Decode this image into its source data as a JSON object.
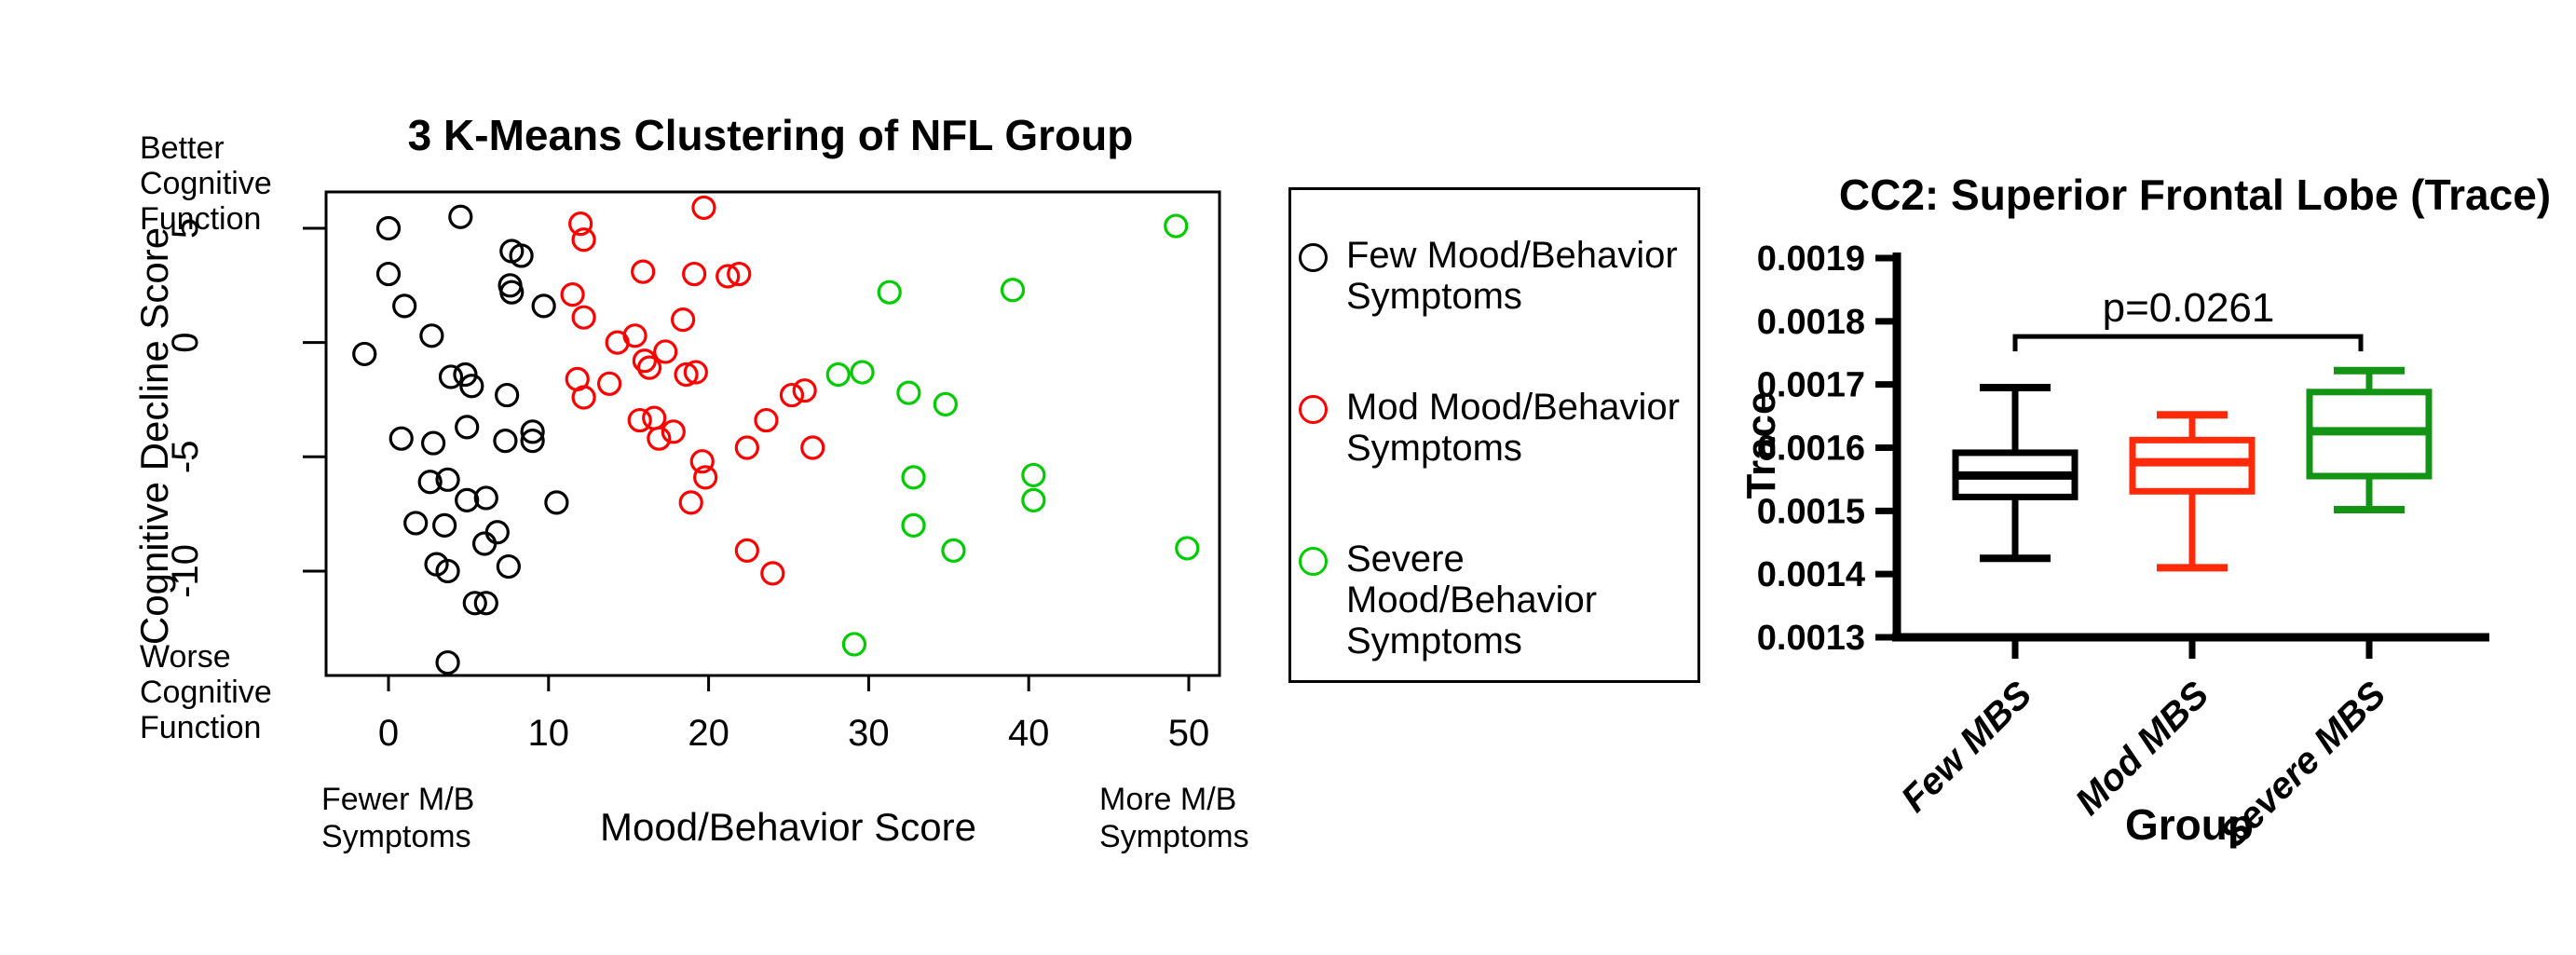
{
  "page": {
    "background": "#ffffff"
  },
  "legend": {
    "items": [
      {
        "label": "Few Mood/Behavior\nSymptoms",
        "color": "#000000"
      },
      {
        "label": "Mod Mood/Behavior\nSymptoms",
        "color": "#FF0000"
      },
      {
        "label": "Severe Mood/Behavior\nSymptoms",
        "color": "#00CC00"
      }
    ]
  },
  "chart_data": [
    {
      "type": "scatter",
      "title": "3 K-Means Clustering of NFL Group",
      "xlabel": "Mood/Behavior Score",
      "ylabel": "Cognitive Decline Score",
      "annotations": {
        "top_left": "Better\nCognitive\nFunction",
        "bottom_left": "Worse\nCognitive\nFunction",
        "x_left": "Fewer M/B\nSymptoms",
        "x_right": "More M/B\nSymptoms"
      },
      "x_ticks": [
        0,
        10,
        20,
        30,
        40,
        50
      ],
      "y_ticks": [
        5,
        0,
        -5,
        -10
      ],
      "xlim": [
        -3.9,
        51.9
      ],
      "ylim": [
        -14.6,
        6.6
      ],
      "grid": false,
      "series": [
        {
          "name": "Few Mood/Behavior Symptoms",
          "color": "#000000",
          "points": [
            [
              0,
              5
            ],
            [
              4.5,
              5.5
            ],
            [
              0,
              3
            ],
            [
              1,
              1.6
            ],
            [
              7.7,
              4
            ],
            [
              8.3,
              3.8
            ],
            [
              7.6,
              2.5
            ],
            [
              7.7,
              2.2
            ],
            [
              9.7,
              1.6
            ],
            [
              2.7,
              0.3
            ],
            [
              -1.5,
              -0.5
            ],
            [
              3.9,
              -1.5
            ],
            [
              4.8,
              -1.4
            ],
            [
              5.2,
              -1.9
            ],
            [
              7.4,
              -2.3
            ],
            [
              4.9,
              -3.7
            ],
            [
              0.8,
              -4.2
            ],
            [
              2.8,
              -4.4
            ],
            [
              7.3,
              -4.3
            ],
            [
              9,
              -3.9
            ],
            [
              9,
              -4.3
            ],
            [
              2.6,
              -6.1
            ],
            [
              3.7,
              -6
            ],
            [
              4.9,
              -6.9
            ],
            [
              6.1,
              -6.8
            ],
            [
              10.5,
              -7
            ],
            [
              1.7,
              -7.9
            ],
            [
              3.5,
              -8
            ],
            [
              6.8,
              -8.3
            ],
            [
              6,
              -8.8
            ],
            [
              3,
              -9.7
            ],
            [
              3.7,
              -10
            ],
            [
              7.5,
              -9.8
            ],
            [
              5.4,
              -11.4
            ],
            [
              6.1,
              -11.4
            ],
            [
              3.7,
              -14
            ]
          ]
        },
        {
          "name": "Mod Mood/Behavior Symptoms",
          "color": "#FF0000",
          "points": [
            [
              19.7,
              5.9
            ],
            [
              12,
              5.2
            ],
            [
              12.2,
              4.5
            ],
            [
              15.9,
              3.1
            ],
            [
              19.1,
              3
            ],
            [
              21.2,
              2.9
            ],
            [
              21.9,
              3
            ],
            [
              11.5,
              2.1
            ],
            [
              12.2,
              1.1
            ],
            [
              18.4,
              1
            ],
            [
              14.3,
              0
            ],
            [
              15.4,
              0.3
            ],
            [
              16,
              -0.8
            ],
            [
              16.3,
              -1.1
            ],
            [
              17.3,
              -0.4
            ],
            [
              18.6,
              -1.4
            ],
            [
              19.2,
              -1.3
            ],
            [
              11.8,
              -1.6
            ],
            [
              13.8,
              -1.8
            ],
            [
              12.2,
              -2.4
            ],
            [
              25.2,
              -2.3
            ],
            [
              26,
              -2.1
            ],
            [
              23.6,
              -3.4
            ],
            [
              15.7,
              -3.4
            ],
            [
              16.6,
              -3.3
            ],
            [
              16.9,
              -4.2
            ],
            [
              17.8,
              -3.9
            ],
            [
              22.4,
              -4.6
            ],
            [
              26.5,
              -4.6
            ],
            [
              19.6,
              -5.2
            ],
            [
              19.8,
              -5.9
            ],
            [
              18.9,
              -7
            ],
            [
              22.4,
              -9.1
            ],
            [
              24,
              -10.1
            ]
          ]
        },
        {
          "name": "Severe Mood/Behavior Symptoms",
          "color": "#00CC00",
          "points": [
            [
              49.2,
              5.1
            ],
            [
              31.3,
              2.2
            ],
            [
              39,
              2.3
            ],
            [
              28.1,
              -1.4
            ],
            [
              29.6,
              -1.3
            ],
            [
              32.5,
              -2.2
            ],
            [
              34.8,
              -2.7
            ],
            [
              32.8,
              -5.9
            ],
            [
              40.3,
              -5.8
            ],
            [
              40.3,
              -6.9
            ],
            [
              32.8,
              -8
            ],
            [
              35.3,
              -9.1
            ],
            [
              49.9,
              -9
            ],
            [
              29.1,
              -13.2
            ]
          ]
        }
      ]
    },
    {
      "type": "box",
      "title": "CC2: Superior Frontal Lobe (Trace)",
      "ylabel": "Trace",
      "xlabel": "Group",
      "y_ticks": [
        "0.0019",
        "0.0018",
        "0.0017",
        "0.0016",
        "0.0015",
        "0.0014",
        "0.0013"
      ],
      "ylim": [
        0.0013,
        0.0019
      ],
      "groups": [
        {
          "label": "Few MBS",
          "color": "#000000",
          "min": 0.001425,
          "q1": 0.001522,
          "median": 0.001556,
          "q3": 0.001592,
          "max": 0.001695
        },
        {
          "label": "Mod MBS",
          "color": "#FF2A0A",
          "min": 0.00141,
          "q1": 0.001531,
          "median": 0.001577,
          "q3": 0.001612,
          "max": 0.001652
        },
        {
          "label": "Severe MBS",
          "color": "#149414",
          "min": 0.001502,
          "q1": 0.001555,
          "median": 0.001626,
          "q3": 0.001688,
          "max": 0.001722
        }
      ],
      "significance": {
        "label": "p=0.0261",
        "from_group": "Few MBS",
        "to_group": "Severe MBS",
        "bar_value": 0.001776
      }
    }
  ]
}
